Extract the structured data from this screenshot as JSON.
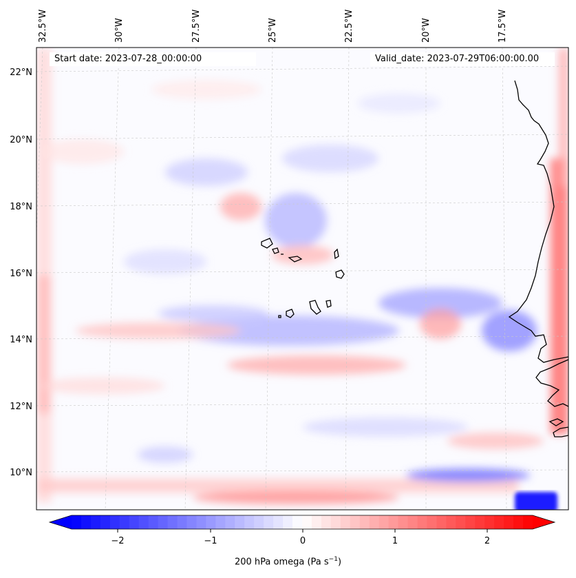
{
  "header": {
    "start_label": "Start date: 2023-07-28_00:00:00",
    "valid_label": "Valid_date: 2023-07-29T06:00:00.00"
  },
  "map": {
    "lon_labels": [
      "32.5°W",
      "30°W",
      "27.5°W",
      "25°W",
      "22.5°W",
      "20°W",
      "17.5°W"
    ],
    "lat_labels": [
      "22°N",
      "20°N",
      "18°N",
      "16°N",
      "14°N",
      "12°N",
      "10°N"
    ]
  },
  "colorbar": {
    "ticks": [
      "−2",
      "−1",
      "0",
      "1",
      "2"
    ],
    "label_main": "200 hPa omega (Pa s",
    "label_sup": "−1",
    "label_end": ")",
    "min": -2.75,
    "max": 2.75
  },
  "colors": {
    "negative": "#0000ff",
    "zero": "#ffffff",
    "positive": "#ff0000",
    "coast": "#000000",
    "grid": "#c8c8c8"
  }
}
